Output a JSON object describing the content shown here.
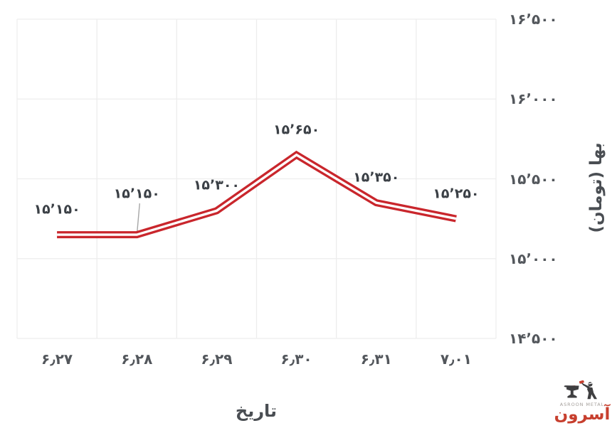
{
  "chart_data": {
    "type": "line",
    "categories": [
      "۶٫۲۷",
      "۶٫۲۸",
      "۶٫۲۹",
      "۶٫۳۰",
      "۶٫۳۱",
      "۷٫۰۱"
    ],
    "series": [
      {
        "name": "بها",
        "values": [
          15150,
          15150,
          15300,
          15650,
          15350,
          15250
        ],
        "point_labels": [
          "۱۵٬۱۵۰",
          "۱۵٬۱۵۰",
          "۱۵٬۳۰۰",
          "۱۵٬۶۵۰",
          "۱۵٬۳۵۰",
          "۱۵٬۲۵۰"
        ],
        "style": "double-stroke"
      }
    ],
    "xlabel": "تاریخ",
    "ylabel": "بها (تومان)",
    "ylim": [
      14500,
      16500
    ],
    "y_ticks": [
      {
        "value": 16500,
        "label": "۱۶٬۵۰۰"
      },
      {
        "value": 16000,
        "label": "۱۶٬۰۰۰"
      },
      {
        "value": 15500,
        "label": "۱۵٬۵۰۰"
      },
      {
        "value": 15000,
        "label": "۱۵٬۰۰۰"
      },
      {
        "value": 14500,
        "label": "۱۴٬۵۰۰"
      }
    ],
    "grid": true,
    "legend_position": "none",
    "callout": {
      "point_index": 1,
      "leader_line": true
    },
    "colors": {
      "line": "#c9262c",
      "line_core": "#ffffff",
      "grid": "#ededed",
      "tick_text": "#53575c",
      "point_label_text": "#3b4046",
      "axis_title_text": "#4a4e53",
      "leader_line": "#a6a6a6"
    }
  },
  "logo": {
    "brand_en": "ASROON METAL",
    "brand_fa": "آسرون",
    "accent": "#c73f2e"
  }
}
